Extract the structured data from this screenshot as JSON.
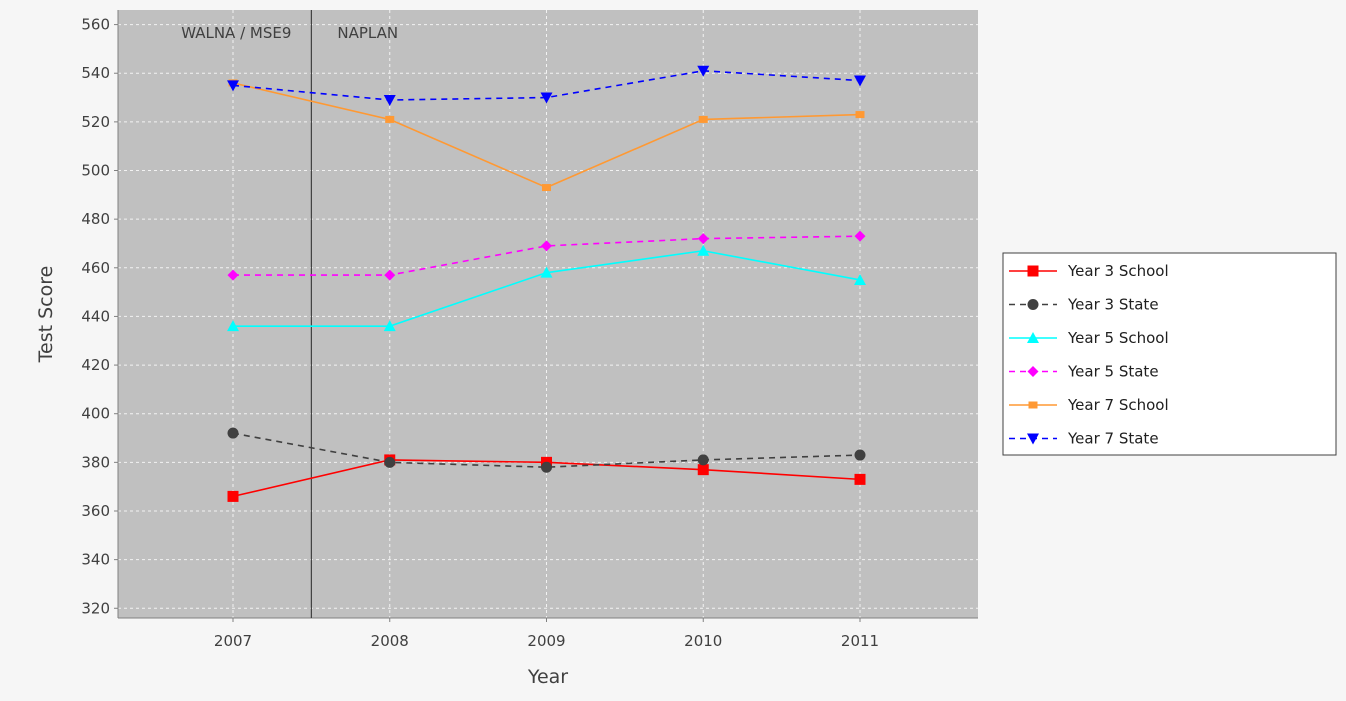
{
  "chart_data": {
    "type": "line",
    "title": "",
    "xlabel": "Year",
    "ylabel": "Test Score",
    "categories": [
      "2007",
      "2008",
      "2009",
      "2010",
      "2011"
    ],
    "ylim": [
      316,
      566
    ],
    "yticks": [
      320,
      340,
      360,
      380,
      400,
      420,
      440,
      460,
      480,
      500,
      520,
      540,
      560
    ],
    "grid": true,
    "legend_position": "right",
    "marker_line": {
      "between": [
        "2007",
        "2008"
      ],
      "left_label": "WALNA / MSE9",
      "right_label": "NAPLAN"
    },
    "colors": {
      "plot_background": "#c0c0c0",
      "page_background": "#f6f6f6",
      "gridline": "#ffffff"
    },
    "series": [
      {
        "name": "Year 3 School",
        "values": [
          366,
          381,
          380,
          377,
          373
        ],
        "color": "#ff0000",
        "dashed": false,
        "marker": "square"
      },
      {
        "name": "Year 3 State",
        "values": [
          392,
          380,
          378,
          381,
          383
        ],
        "color": "#404040",
        "dashed": true,
        "marker": "circle"
      },
      {
        "name": "Year 5 School",
        "values": [
          436,
          436,
          458,
          467,
          455
        ],
        "color": "#00ffff",
        "dashed": false,
        "marker": "triangle-up"
      },
      {
        "name": "Year 5 State",
        "values": [
          457,
          457,
          469,
          472,
          473
        ],
        "color": "#ff00ff",
        "dashed": true,
        "marker": "diamond"
      },
      {
        "name": "Year 7 School",
        "values": [
          536,
          521,
          493,
          521,
          523
        ],
        "color": "#ff9933",
        "dashed": false,
        "marker": "square-small"
      },
      {
        "name": "Year 7 State",
        "values": [
          535,
          529,
          530,
          541,
          537
        ],
        "color": "#0000ff",
        "dashed": true,
        "marker": "triangle-down"
      }
    ]
  }
}
